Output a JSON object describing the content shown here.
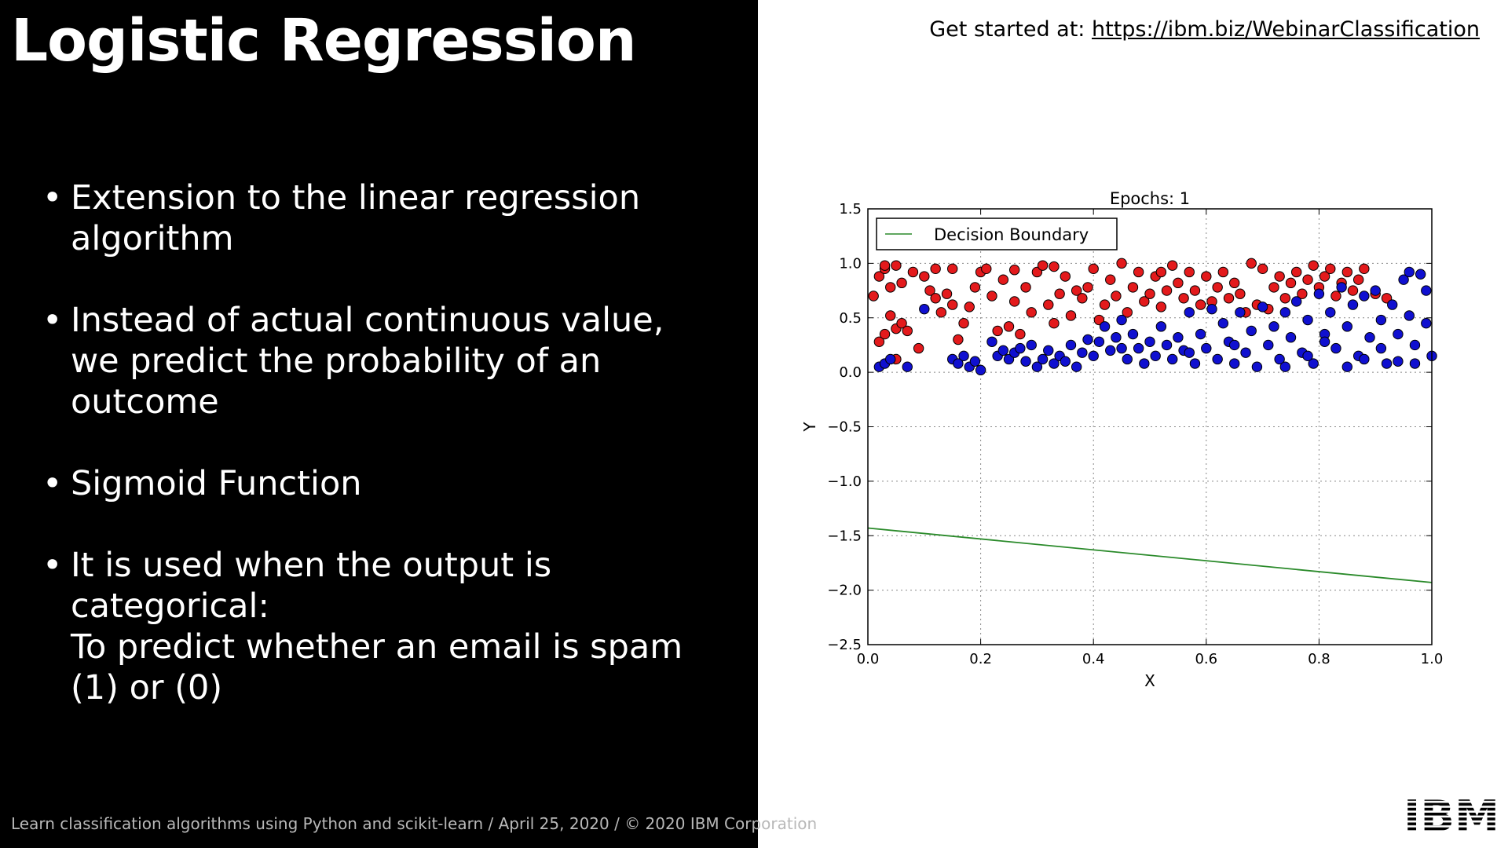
{
  "slide": {
    "title": "Logistic Regression",
    "get_started_label": "Get started at:",
    "get_started_link": "https://ibm.biz/WebinarClassification",
    "bullets": [
      [
        "Extension to the linear regression",
        "algorithm"
      ],
      [
        "Instead of actual continuous value,",
        "we predict the probability of an",
        "outcome"
      ],
      [
        "Sigmoid Function"
      ],
      [
        "It is used when the output is",
        "categorical:",
        "To predict whether an email is spam",
        "(1) or (0)"
      ]
    ],
    "footer": "Learn classification algorithms using Python and scikit-learn / April 25, 2020 / © 2020 IBM Corporation",
    "logo_text": "IBM"
  },
  "chart_data": {
    "type": "scatter",
    "title": "Epochs: 1",
    "xlabel": "X",
    "ylabel": "Y",
    "xlim": [
      0.0,
      1.0
    ],
    "ylim": [
      -2.5,
      1.5
    ],
    "xticks": [
      "0.0",
      "0.2",
      "0.4",
      "0.6",
      "0.8",
      "1.0"
    ],
    "yticks": [
      "1.5",
      "1.0",
      "0.5",
      "0.0",
      "−0.5",
      "−1.0",
      "−1.5",
      "−2.0",
      "−2.5"
    ],
    "grid": true,
    "legend_position": "top-left",
    "colors": {
      "red": "#e31a1c",
      "blue": "#1010d0",
      "boundary": "#2a8a2a"
    },
    "series": [
      {
        "color": "red",
        "points": [
          [
            0.01,
            0.7
          ],
          [
            0.02,
            0.88
          ],
          [
            0.03,
            0.95
          ],
          [
            0.04,
            0.78
          ],
          [
            0.05,
            0.98
          ],
          [
            0.06,
            0.82
          ],
          [
            0.02,
            0.28
          ],
          [
            0.03,
            0.35
          ],
          [
            0.04,
            0.52
          ],
          [
            0.05,
            0.4
          ],
          [
            0.06,
            0.45
          ],
          [
            0.07,
            0.38
          ],
          [
            0.08,
            0.92
          ],
          [
            0.09,
            0.22
          ],
          [
            0.1,
            0.88
          ],
          [
            0.11,
            0.75
          ],
          [
            0.12,
            0.68
          ],
          [
            0.13,
            0.55
          ],
          [
            0.14,
            0.72
          ],
          [
            0.15,
            0.62
          ],
          [
            0.16,
            0.3
          ],
          [
            0.17,
            0.45
          ],
          [
            0.18,
            0.6
          ],
          [
            0.19,
            0.78
          ],
          [
            0.2,
            0.92
          ],
          [
            0.21,
            0.95
          ],
          [
            0.22,
            0.7
          ],
          [
            0.23,
            0.38
          ],
          [
            0.24,
            0.85
          ],
          [
            0.25,
            0.42
          ],
          [
            0.26,
            0.65
          ],
          [
            0.27,
            0.35
          ],
          [
            0.28,
            0.78
          ],
          [
            0.29,
            0.55
          ],
          [
            0.3,
            0.92
          ],
          [
            0.31,
            0.98
          ],
          [
            0.32,
            0.62
          ],
          [
            0.33,
            0.45
          ],
          [
            0.34,
            0.72
          ],
          [
            0.35,
            0.88
          ],
          [
            0.36,
            0.52
          ],
          [
            0.37,
            0.75
          ],
          [
            0.38,
            0.68
          ],
          [
            0.39,
            0.78
          ],
          [
            0.4,
            0.95
          ],
          [
            0.41,
            0.48
          ],
          [
            0.42,
            0.62
          ],
          [
            0.43,
            0.85
          ],
          [
            0.44,
            0.7
          ],
          [
            0.45,
            1.0
          ],
          [
            0.46,
            0.55
          ],
          [
            0.47,
            0.78
          ],
          [
            0.48,
            0.92
          ],
          [
            0.49,
            0.65
          ],
          [
            0.5,
            0.72
          ],
          [
            0.51,
            0.88
          ],
          [
            0.52,
            0.6
          ],
          [
            0.53,
            0.75
          ],
          [
            0.54,
            0.98
          ],
          [
            0.55,
            0.82
          ],
          [
            0.56,
            0.68
          ],
          [
            0.57,
            0.92
          ],
          [
            0.58,
            0.75
          ],
          [
            0.59,
            0.62
          ],
          [
            0.6,
            0.88
          ],
          [
            0.61,
            0.65
          ],
          [
            0.62,
            0.78
          ],
          [
            0.63,
            0.92
          ],
          [
            0.64,
            0.68
          ],
          [
            0.65,
            0.82
          ],
          [
            0.66,
            0.72
          ],
          [
            0.67,
            0.55
          ],
          [
            0.68,
            1.0
          ],
          [
            0.69,
            0.62
          ],
          [
            0.7,
            0.95
          ],
          [
            0.71,
            0.58
          ],
          [
            0.72,
            0.78
          ],
          [
            0.73,
            0.88
          ],
          [
            0.74,
            0.68
          ],
          [
            0.75,
            0.82
          ],
          [
            0.76,
            0.92
          ],
          [
            0.77,
            0.72
          ],
          [
            0.78,
            0.85
          ],
          [
            0.79,
            0.98
          ],
          [
            0.8,
            0.78
          ],
          [
            0.81,
            0.88
          ],
          [
            0.82,
            0.95
          ],
          [
            0.83,
            0.7
          ],
          [
            0.84,
            0.82
          ],
          [
            0.85,
            0.92
          ],
          [
            0.86,
            0.75
          ],
          [
            0.87,
            0.85
          ],
          [
            0.88,
            0.95
          ],
          [
            0.9,
            0.72
          ],
          [
            0.92,
            0.68
          ],
          [
            0.03,
            0.98
          ],
          [
            0.05,
            0.12
          ],
          [
            0.12,
            0.95
          ],
          [
            0.15,
            0.95
          ],
          [
            0.26,
            0.94
          ],
          [
            0.33,
            0.97
          ],
          [
            0.52,
            0.92
          ]
        ]
      },
      {
        "color": "blue",
        "points": [
          [
            0.02,
            0.05
          ],
          [
            0.03,
            0.08
          ],
          [
            0.04,
            0.12
          ],
          [
            0.07,
            0.05
          ],
          [
            0.1,
            0.58
          ],
          [
            0.15,
            0.12
          ],
          [
            0.16,
            0.08
          ],
          [
            0.17,
            0.15
          ],
          [
            0.18,
            0.05
          ],
          [
            0.19,
            0.1
          ],
          [
            0.2,
            0.02
          ],
          [
            0.22,
            0.28
          ],
          [
            0.23,
            0.15
          ],
          [
            0.24,
            0.2
          ],
          [
            0.25,
            0.12
          ],
          [
            0.26,
            0.18
          ],
          [
            0.27,
            0.22
          ],
          [
            0.28,
            0.1
          ],
          [
            0.29,
            0.25
          ],
          [
            0.3,
            0.05
          ],
          [
            0.31,
            0.12
          ],
          [
            0.32,
            0.2
          ],
          [
            0.33,
            0.08
          ],
          [
            0.34,
            0.15
          ],
          [
            0.35,
            0.1
          ],
          [
            0.36,
            0.25
          ],
          [
            0.37,
            0.05
          ],
          [
            0.38,
            0.18
          ],
          [
            0.39,
            0.3
          ],
          [
            0.4,
            0.15
          ],
          [
            0.41,
            0.28
          ],
          [
            0.42,
            0.42
          ],
          [
            0.43,
            0.2
          ],
          [
            0.44,
            0.32
          ],
          [
            0.45,
            0.48
          ],
          [
            0.46,
            0.12
          ],
          [
            0.47,
            0.35
          ],
          [
            0.48,
            0.22
          ],
          [
            0.49,
            0.08
          ],
          [
            0.5,
            0.28
          ],
          [
            0.51,
            0.15
          ],
          [
            0.52,
            0.42
          ],
          [
            0.53,
            0.25
          ],
          [
            0.54,
            0.12
          ],
          [
            0.55,
            0.32
          ],
          [
            0.56,
            0.2
          ],
          [
            0.57,
            0.55
          ],
          [
            0.58,
            0.08
          ],
          [
            0.59,
            0.35
          ],
          [
            0.6,
            0.22
          ],
          [
            0.61,
            0.58
          ],
          [
            0.62,
            0.12
          ],
          [
            0.63,
            0.45
          ],
          [
            0.64,
            0.28
          ],
          [
            0.65,
            0.08
          ],
          [
            0.66,
            0.55
          ],
          [
            0.67,
            0.18
          ],
          [
            0.68,
            0.38
          ],
          [
            0.69,
            0.05
          ],
          [
            0.7,
            0.6
          ],
          [
            0.71,
            0.25
          ],
          [
            0.72,
            0.42
          ],
          [
            0.73,
            0.12
          ],
          [
            0.74,
            0.55
          ],
          [
            0.75,
            0.32
          ],
          [
            0.76,
            0.65
          ],
          [
            0.77,
            0.18
          ],
          [
            0.78,
            0.48
          ],
          [
            0.79,
            0.08
          ],
          [
            0.8,
            0.72
          ],
          [
            0.81,
            0.35
          ],
          [
            0.82,
            0.55
          ],
          [
            0.83,
            0.22
          ],
          [
            0.84,
            0.78
          ],
          [
            0.85,
            0.42
          ],
          [
            0.86,
            0.62
          ],
          [
            0.87,
            0.15
          ],
          [
            0.88,
            0.7
          ],
          [
            0.89,
            0.32
          ],
          [
            0.9,
            0.75
          ],
          [
            0.91,
            0.48
          ],
          [
            0.92,
            0.08
          ],
          [
            0.93,
            0.62
          ],
          [
            0.94,
            0.35
          ],
          [
            0.95,
            0.85
          ],
          [
            0.96,
            0.52
          ],
          [
            0.97,
            0.25
          ],
          [
            0.98,
            0.9
          ],
          [
            0.99,
            0.45
          ],
          [
            1.0,
            0.15
          ],
          [
            0.96,
            0.92
          ],
          [
            0.99,
            0.75
          ],
          [
            0.97,
            0.08
          ],
          [
            0.85,
            0.05
          ],
          [
            0.88,
            0.12
          ],
          [
            0.91,
            0.22
          ],
          [
            0.94,
            0.1
          ],
          [
            0.81,
            0.28
          ],
          [
            0.78,
            0.15
          ],
          [
            0.74,
            0.05
          ],
          [
            0.65,
            0.25
          ],
          [
            0.57,
            0.18
          ],
          [
            0.45,
            0.22
          ]
        ]
      }
    ],
    "legend": [
      "Decision Boundary"
    ],
    "decision_boundary": {
      "x": [
        0.0,
        1.0
      ],
      "y": [
        -1.43,
        -1.93
      ]
    }
  }
}
